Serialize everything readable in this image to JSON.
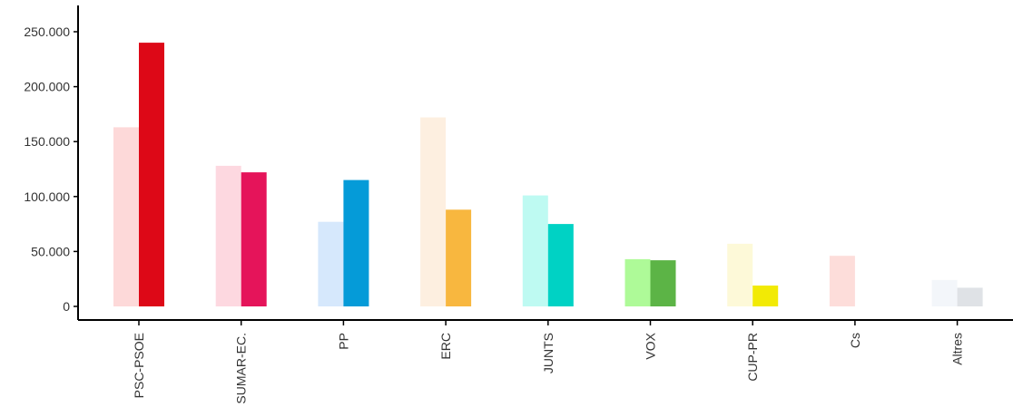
{
  "chart_data": {
    "type": "bar",
    "title": "",
    "xlabel": "",
    "ylabel": "",
    "ylim": [
      0,
      265000
    ],
    "yticks": [
      0,
      50000,
      100000,
      150000,
      200000,
      250000
    ],
    "ytick_labels": [
      "0",
      "50.000",
      "100.000",
      "150.000",
      "200.000",
      "250.000"
    ],
    "grid": false,
    "legend": "none",
    "categories": [
      "PSC-PSOE",
      "SUMAR-EC.",
      "PP",
      "ERC",
      "JUNTS",
      "VOX",
      "CUP-PR",
      "Cs",
      "Altres"
    ],
    "series": [
      {
        "values": [
          163000,
          128000,
          77000,
          172000,
          101000,
          43000,
          57000,
          46000,
          24000
        ],
        "colors": [
          "#fdd9d9",
          "#fdd8e0",
          "#d6e8fc",
          "#fdefe0",
          "#befaf2",
          "#aefa98",
          "#fdf9d8",
          "#fdddda",
          "#f3f6fa"
        ]
      },
      {
        "values": [
          240000,
          122000,
          115000,
          88000,
          75000,
          42000,
          19000,
          0,
          17000
        ],
        "colors": [
          "#dd0817",
          "#e5145a",
          "#059bd8",
          "#f8b73f",
          "#00d2c4",
          "#5cb446",
          "#f2ea05",
          "#fdddda",
          "#dfe2e6"
        ]
      }
    ]
  }
}
